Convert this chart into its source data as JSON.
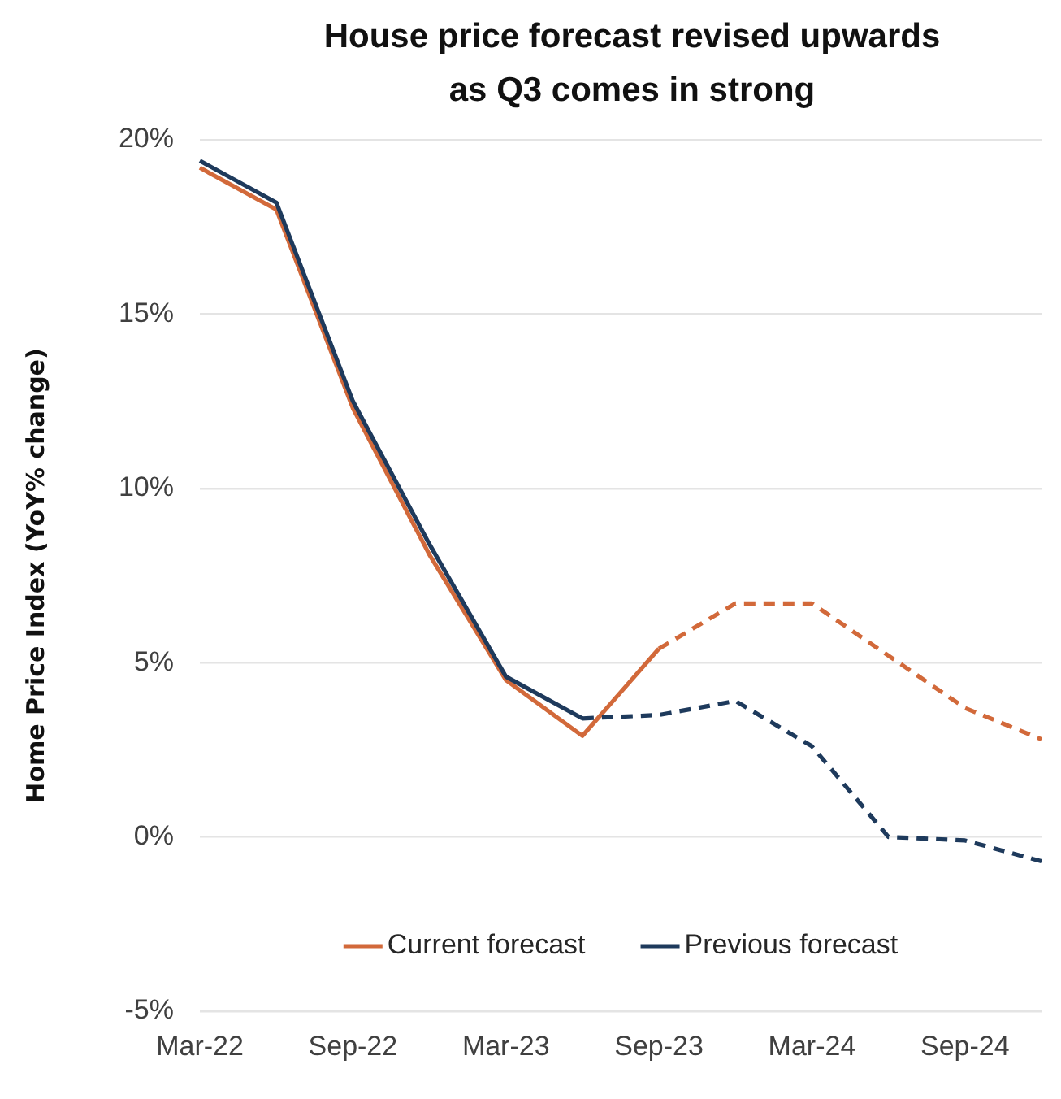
{
  "chart_data": {
    "type": "line",
    "title": "House price forecast revised upwards as Q3 comes in strong",
    "ylabel": "Home Price Index (YoY% change)",
    "categories": [
      "Mar-22",
      null,
      "Sep-22",
      null,
      "Mar-23",
      null,
      "Sep-23",
      null,
      "Mar-24",
      null,
      "Sep-24",
      null
    ],
    "series": [
      {
        "name": "Current forecast",
        "color": "#d2693a",
        "values": [
          19.2,
          18.0,
          12.3,
          8.1,
          4.5,
          2.9,
          5.4,
          null,
          null,
          null,
          null,
          null
        ]
      },
      {
        "color": "#d2693a",
        "line_style": "dashed",
        "values": [
          null,
          null,
          null,
          null,
          null,
          null,
          5.4,
          6.7,
          6.7,
          5.2,
          3.7,
          2.8
        ]
      },
      {
        "name": "Previous forecast",
        "color": "#1e3a5c",
        "values": [
          19.4,
          18.2,
          12.5,
          8.4,
          4.6,
          3.4,
          null,
          null,
          null,
          null,
          null,
          null
        ]
      },
      {
        "color": "#1e3a5c",
        "line_style": "dashed",
        "values": [
          null,
          null,
          null,
          null,
          null,
          3.4,
          3.5,
          3.9,
          2.6,
          0,
          -0.1,
          -0.7
        ]
      }
    ],
    "ylim": [
      -5,
      20
    ],
    "yticks": [
      {
        "value": -5,
        "label": "-5%"
      },
      {
        "value": 0,
        "label": "0%"
      },
      {
        "value": 5,
        "label": "5%"
      },
      {
        "value": 10,
        "label": "10%"
      },
      {
        "value": 15,
        "label": "15%"
      },
      {
        "value": 20,
        "label": "20%"
      }
    ],
    "grid": "y",
    "legend": "bottom",
    "marker": "none",
    "line_style": "solid"
  }
}
